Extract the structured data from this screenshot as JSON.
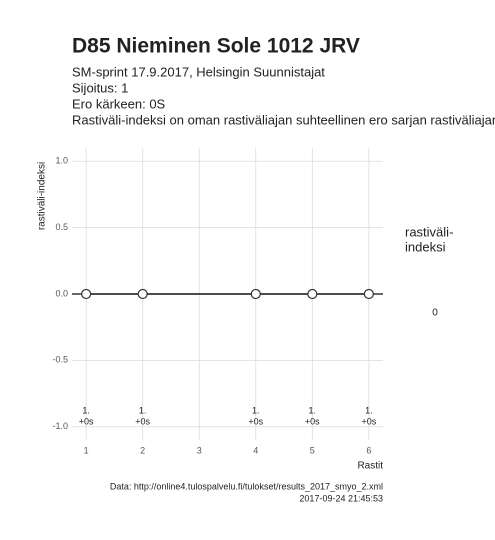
{
  "chart_data": {
    "type": "line",
    "title": "D85 Nieminen Sole 1012 JRV",
    "subtitle": [
      "SM-sprint 17.9.2017, Helsingin Suunnistajat",
      "Sijoitus: 1",
      "Ero kärkeen: 0S",
      "Rastiväli-indeksi on oman rastiväliajan suhteellinen ero sarjan rastiväliajan"
    ],
    "x_label": "Rastit",
    "y_label": "rastiväli-indeksi",
    "x": [
      1,
      2,
      4,
      5,
      6
    ],
    "series": [
      {
        "name": "rastiväli-indeksi",
        "color": "#333333",
        "values": [
          0,
          0,
          0,
          0,
          0
        ]
      }
    ],
    "point_labels": [
      [
        "1.",
        "+0s"
      ],
      [
        "1.",
        "+0s"
      ],
      [
        "1.",
        "+0s"
      ],
      [
        "1.",
        "+0s"
      ],
      [
        "1.",
        "+0s"
      ]
    ],
    "reference_line": 0,
    "xlim": [
      0.75,
      6.25
    ],
    "ylim": [
      -1.1,
      1.1
    ],
    "xticks": [
      1,
      2,
      3,
      4,
      5,
      6
    ],
    "yticks": [
      {
        "value": -1,
        "label": "-1.0"
      },
      {
        "value": -0.5,
        "label": "-0.5"
      },
      {
        "value": 0,
        "label": "0.0"
      },
      {
        "value": 0.5,
        "label": "0.5"
      },
      {
        "value": 1,
        "label": "1.0"
      }
    ],
    "grid": true,
    "legend": {
      "title": [
        "rastiväli-",
        "indeksi"
      ],
      "labels": [
        0
      ]
    },
    "caption": [
      "Data: http://online4.tulospalvelu.fi/tulokset/results_2017_smyo_2.xml",
      "2017-09-24 21:45:53"
    ]
  }
}
